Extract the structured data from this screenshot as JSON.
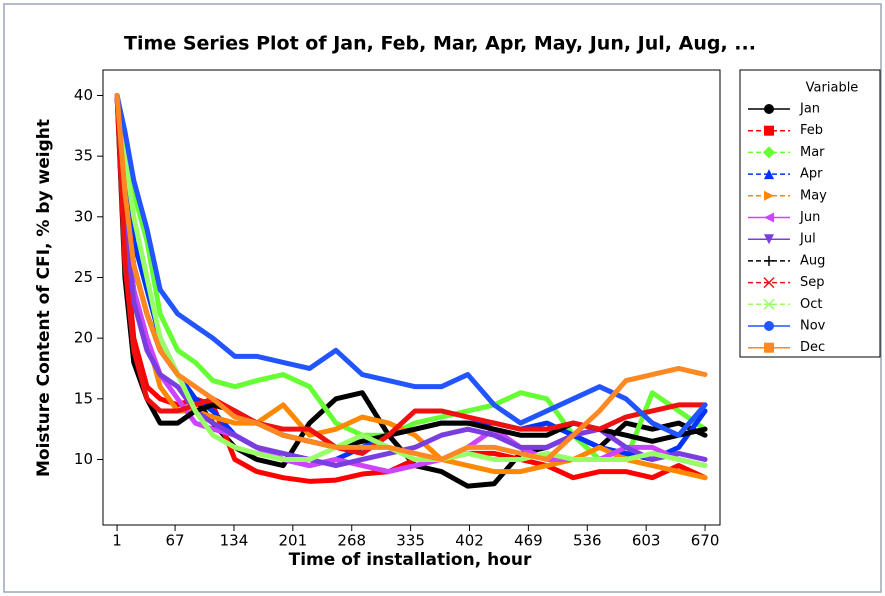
{
  "chart_data": {
    "type": "line",
    "title": "Time Series Plot of Jan, Feb, Mar, Apr, May, Jun, Jul, Aug, ...",
    "xlabel": "Time of installation, hour",
    "ylabel": "Moisture Content of CFI, % by weight",
    "legend_title": "Variable",
    "legend": "right",
    "x": [
      1,
      10,
      20,
      35,
      50,
      70,
      90,
      110,
      135,
      160,
      190,
      220,
      250,
      280,
      310,
      340,
      370,
      400,
      430,
      460,
      490,
      520,
      550,
      580,
      610,
      640,
      670
    ],
    "xlim": [
      -15,
      687
    ],
    "xticks": [
      1,
      67,
      134,
      201,
      268,
      335,
      402,
      469,
      536,
      603,
      670
    ],
    "ylim": [
      4.6,
      42.1
    ],
    "yticks": [
      10,
      15,
      20,
      25,
      30,
      35,
      40
    ],
    "series": [
      {
        "name": "Jan",
        "color": "#000000",
        "marker": "circle",
        "linestyle": "solid",
        "values": [
          40,
          32,
          26,
          22,
          19,
          17,
          15,
          13,
          11,
          10,
          9.5,
          13,
          15,
          15.5,
          12,
          9.5,
          9,
          7.8,
          8,
          10.5,
          11,
          12,
          11,
          13,
          12.5,
          13,
          12
        ]
      },
      {
        "name": "Feb",
        "color": "#ff0000",
        "marker": "square",
        "linestyle": "dashed",
        "values": [
          40,
          28,
          20,
          16,
          15,
          14.5,
          15,
          14.5,
          10,
          9,
          8.5,
          8.2,
          8.3,
          8.8,
          9,
          10,
          10,
          10.5,
          10.5,
          10,
          9.5,
          8.5,
          9,
          9,
          8.5,
          9.5,
          8.5
        ]
      },
      {
        "name": "Mar",
        "color": "#66ff33",
        "marker": "diamond",
        "linestyle": "dashed",
        "values": [
          40,
          36,
          32,
          28,
          22,
          19,
          18,
          16.5,
          16,
          16.5,
          17,
          16,
          13,
          12,
          12,
          13,
          13.5,
          14,
          14.5,
          15.5,
          15,
          12,
          10,
          10,
          15.5,
          14,
          12.5
        ]
      },
      {
        "name": "Apr",
        "color": "#0033ff",
        "marker": "triangle",
        "linestyle": "dashed",
        "values": [
          40,
          34,
          28,
          24,
          20,
          17,
          15,
          14,
          12,
          11,
          10,
          9.5,
          10,
          11,
          12,
          12.5,
          13,
          13,
          13,
          12.5,
          13,
          12,
          11,
          10.5,
          10,
          11,
          14
        ]
      },
      {
        "name": "May",
        "color": "#ff8800",
        "marker": "tri-right",
        "linestyle": "dashed",
        "values": [
          40,
          30,
          24,
          20,
          16,
          14,
          14,
          13.5,
          13,
          13,
          14.5,
          12,
          12.5,
          13.5,
          13,
          12,
          10,
          9.5,
          9,
          9,
          9.5,
          10,
          11,
          10,
          9.5,
          9,
          8.5
        ]
      },
      {
        "name": "Jun",
        "color": "#cc44ff",
        "marker": "tri-left",
        "linestyle": "solid",
        "values": [
          40,
          30,
          24,
          20,
          17,
          15,
          13,
          12.5,
          12,
          11,
          10,
          9.5,
          10,
          9.5,
          9,
          9.5,
          10,
          11,
          12.5,
          11,
          10,
          10,
          10,
          11,
          11,
          10,
          9.5
        ]
      },
      {
        "name": "Jul",
        "color": "#7a3de0",
        "marker": "tri-down",
        "linestyle": "solid",
        "values": [
          40,
          30,
          23,
          19,
          17,
          16,
          14,
          13,
          12,
          11,
          10.5,
          10,
          9.5,
          10,
          10.5,
          11,
          12,
          12.5,
          12,
          11,
          11,
          12,
          12.5,
          11,
          10,
          10.5,
          10
        ]
      },
      {
        "name": "Aug",
        "color": "#000000",
        "marker": "plus",
        "linestyle": "dashed",
        "values": [
          40,
          25,
          18,
          15,
          13,
          13,
          14,
          14.5,
          14,
          13,
          12,
          11.5,
          11,
          11.5,
          12,
          12.5,
          13,
          13,
          12.5,
          12,
          12,
          13,
          12.5,
          12,
          11.5,
          12,
          12.5
        ]
      },
      {
        "name": "Sep",
        "color": "#ee1111",
        "marker": "cross",
        "linestyle": "dashed",
        "values": [
          40,
          26,
          19,
          15,
          14,
          14,
          14.5,
          15,
          14,
          13,
          12.5,
          12.5,
          11,
          10.5,
          12,
          14,
          14,
          13.5,
          13,
          12.5,
          12.5,
          13,
          12.5,
          13.5,
          14,
          14.5,
          14.5
        ]
      },
      {
        "name": "Oct",
        "color": "#99ff66",
        "marker": "star",
        "linestyle": "dashed",
        "values": [
          40,
          35,
          30,
          25,
          20,
          17,
          14,
          12,
          11,
          10.5,
          10,
          10,
          11,
          12,
          11,
          10,
          10,
          10.5,
          10,
          10,
          10.5,
          10,
          10,
          10,
          10.5,
          10,
          9.5
        ]
      },
      {
        "name": "Nov",
        "color": "#2255ff",
        "marker": "circle",
        "linestyle": "solid",
        "values": [
          40,
          37,
          33,
          29,
          24,
          22,
          21,
          20,
          18.5,
          18.5,
          18,
          17.5,
          19,
          17,
          16.5,
          16,
          16,
          17,
          14.5,
          13,
          14,
          15,
          16,
          15,
          13,
          12,
          14.5
        ]
      },
      {
        "name": "Dec",
        "color": "#ff8822",
        "marker": "square",
        "linestyle": "solid",
        "values": [
          40,
          32,
          26,
          22,
          19,
          17,
          16,
          15,
          13.5,
          13,
          12,
          11.5,
          11,
          11,
          11,
          10.5,
          10,
          11,
          11,
          10.5,
          10,
          12,
          14,
          16.5,
          17,
          17.5,
          17
        ]
      }
    ]
  }
}
